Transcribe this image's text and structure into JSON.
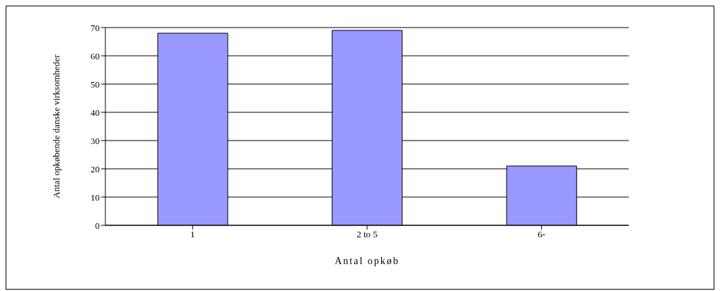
{
  "chart_data": {
    "type": "bar",
    "xlabel": "Antal opkøb",
    "ylabel": "Antal opkøbende danske virksomheder",
    "categories": [
      "1",
      "2 to 5",
      "6-"
    ],
    "values": [
      68,
      69,
      21
    ],
    "color": "#9999ff",
    "ylim": [
      0,
      70
    ],
    "yticks": [
      0,
      10,
      20,
      30,
      40,
      50,
      60,
      70
    ],
    "grid": "y"
  }
}
